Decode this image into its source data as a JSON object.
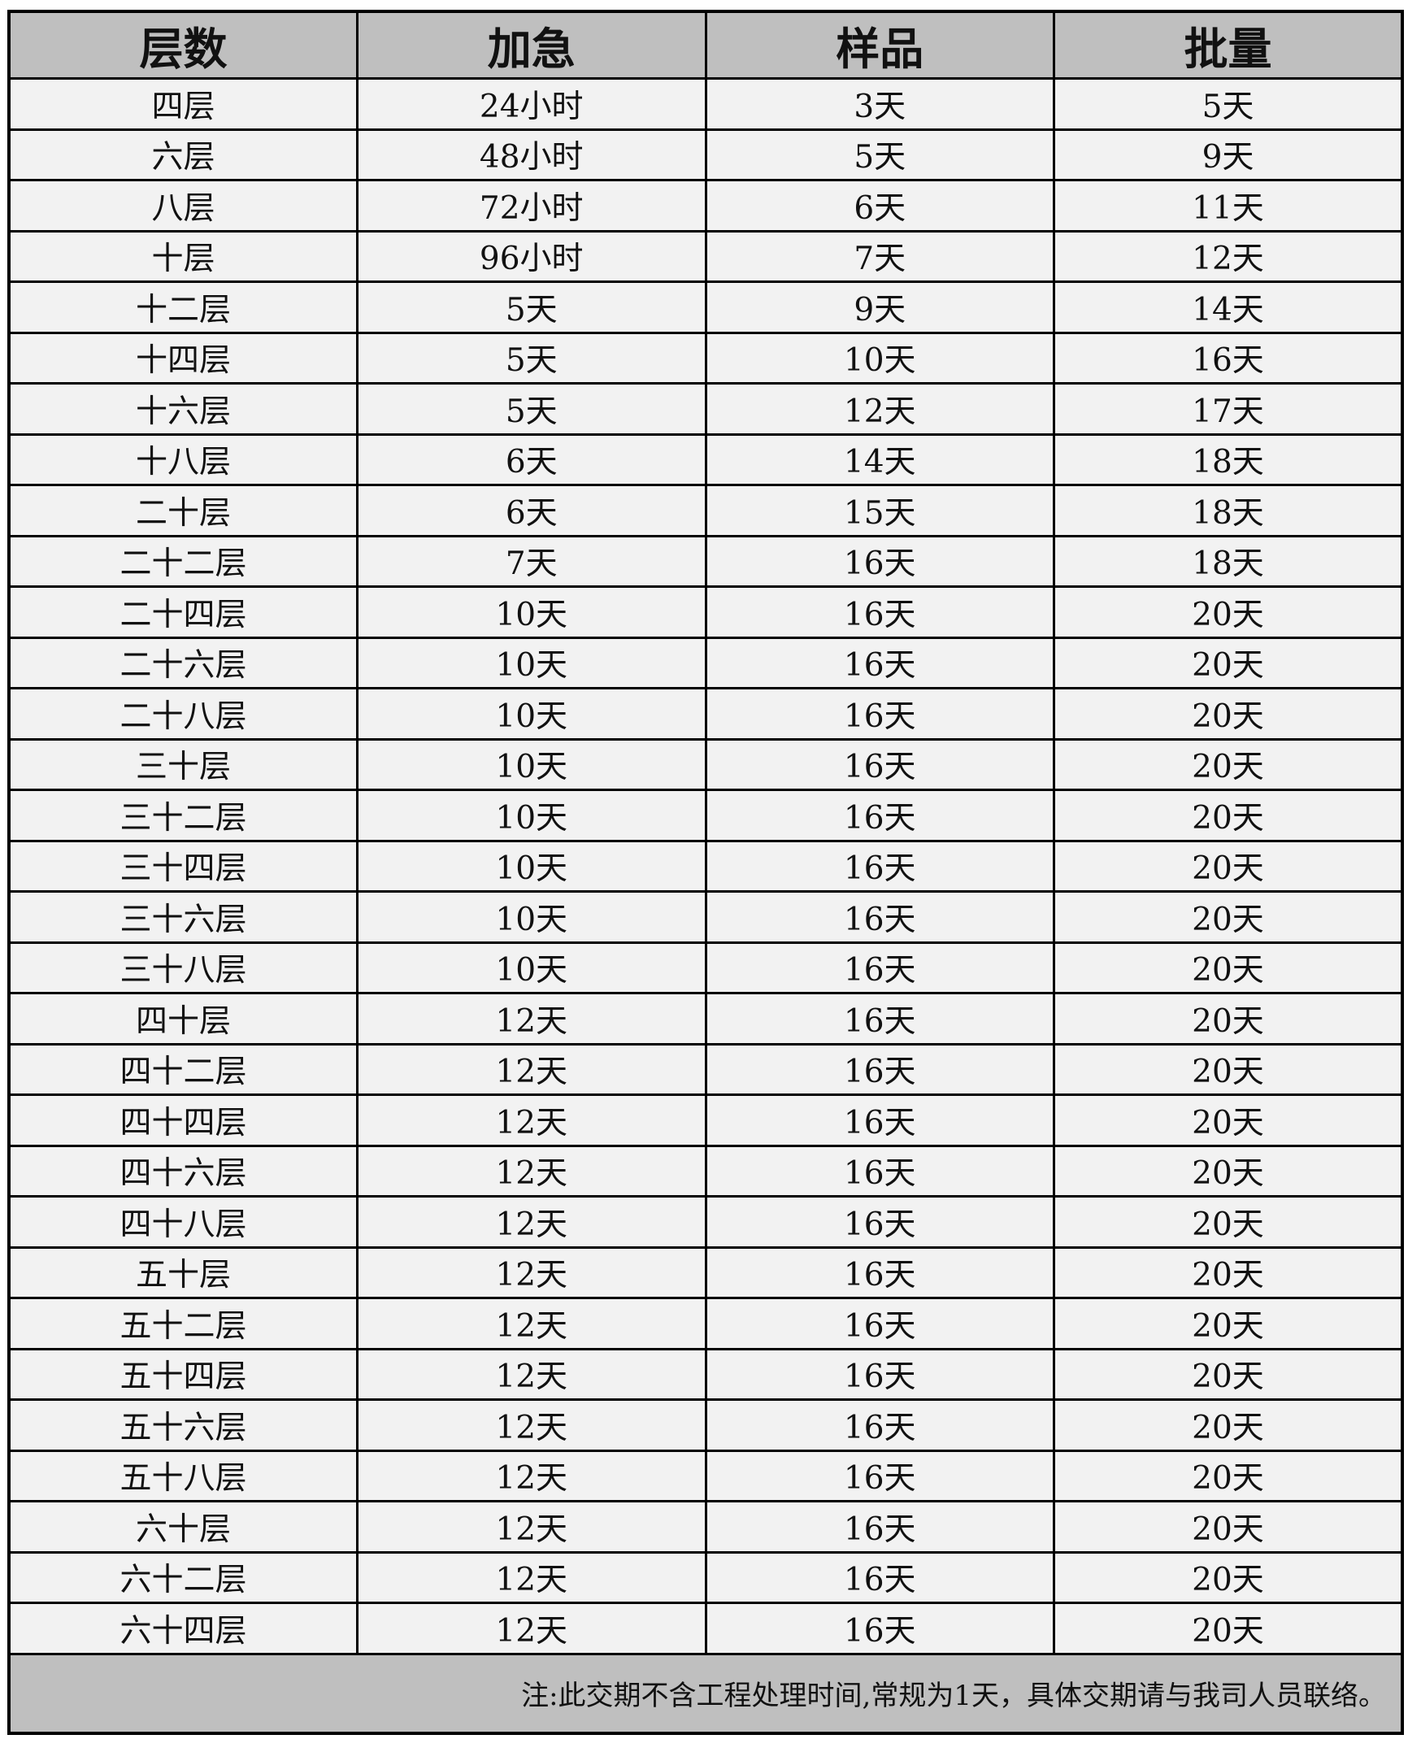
{
  "headers": [
    "层数",
    "加急",
    "样品",
    "批量"
  ],
  "rows": [
    [
      "四层",
      "24小时",
      "3天",
      "5天"
    ],
    [
      "六层",
      "48小时",
      "5天",
      "9天"
    ],
    [
      "八层",
      "72小时",
      "6天",
      "11天"
    ],
    [
      "十层",
      "96小时",
      "7天",
      "12天"
    ],
    [
      "十二层",
      "5天",
      "9天",
      "14天"
    ],
    [
      "十四层",
      "5天",
      "10天",
      "16天"
    ],
    [
      "十六层",
      "5天",
      "12天",
      "17天"
    ],
    [
      "十八层",
      "6天",
      "14天",
      "18天"
    ],
    [
      "二十层",
      "6天",
      "15天",
      "18天"
    ],
    [
      "二十二层",
      "7天",
      "16天",
      "18天"
    ],
    [
      "二十四层",
      "10天",
      "16天",
      "20天"
    ],
    [
      "二十六层",
      "10天",
      "16天",
      "20天"
    ],
    [
      "二十八层",
      "10天",
      "16天",
      "20天"
    ],
    [
      "三十层",
      "10天",
      "16天",
      "20天"
    ],
    [
      "三十二层",
      "10天",
      "16天",
      "20天"
    ],
    [
      "三十四层",
      "10天",
      "16天",
      "20天"
    ],
    [
      "三十六层",
      "10天",
      "16天",
      "20天"
    ],
    [
      "三十八层",
      "10天",
      "16天",
      "20天"
    ],
    [
      "四十层",
      "12天",
      "16天",
      "20天"
    ],
    [
      "四十二层",
      "12天",
      "16天",
      "20天"
    ],
    [
      "四十四层",
      "12天",
      "16天",
      "20天"
    ],
    [
      "四十六层",
      "12天",
      "16天",
      "20天"
    ],
    [
      "四十八层",
      "12天",
      "16天",
      "20天"
    ],
    [
      "五十层",
      "12天",
      "16天",
      "20天"
    ],
    [
      "五十二层",
      "12天",
      "16天",
      "20天"
    ],
    [
      "五十四层",
      "12天",
      "16天",
      "20天"
    ],
    [
      "五十六层",
      "12天",
      "16天",
      "20天"
    ],
    [
      "五十八层",
      "12天",
      "16天",
      "20天"
    ],
    [
      "六十层",
      "12天",
      "16天",
      "20天"
    ],
    [
      "六十二层",
      "12天",
      "16天",
      "20天"
    ],
    [
      "六十四层",
      "12天",
      "16天",
      "20天"
    ]
  ],
  "note": "注:此交期不含工程处理时间,常规为1天，具体交期请与我司人员联络。",
  "colors": {
    "header_bg": "#bfbfbf",
    "row_bg": "#f2f2f2",
    "border": "#000000"
  }
}
